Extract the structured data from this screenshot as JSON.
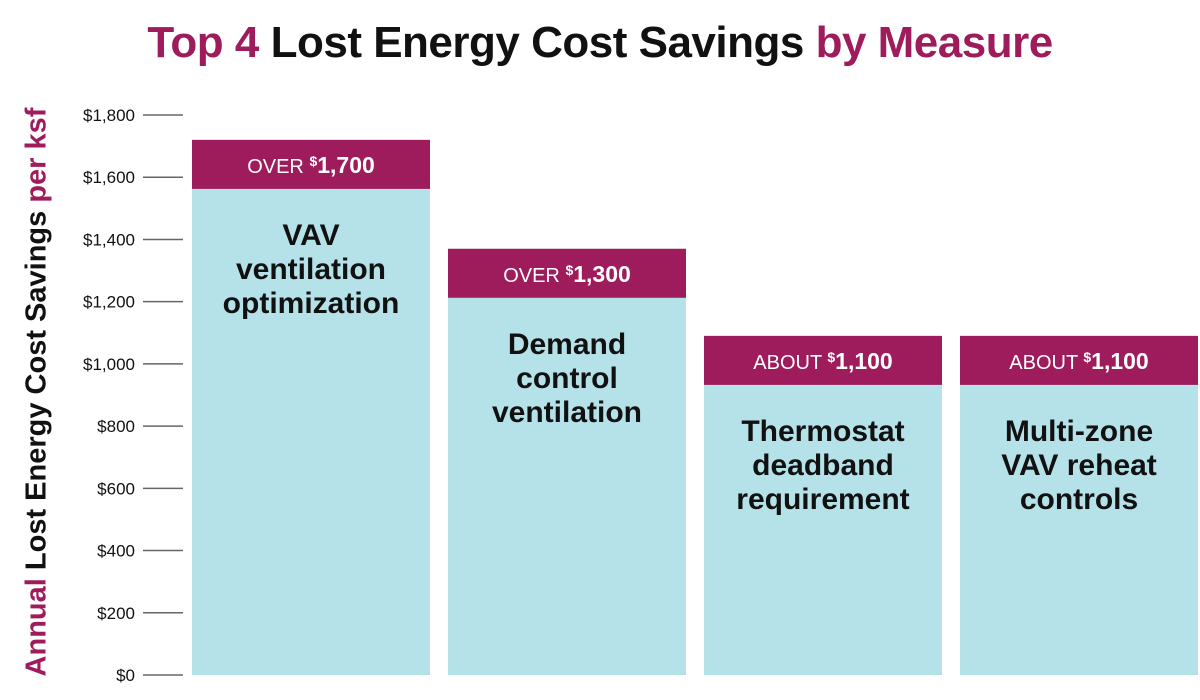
{
  "chart_data": {
    "type": "bar",
    "title_parts": [
      {
        "text": "Top 4 ",
        "highlight": true
      },
      {
        "text": "Lost Energy Cost Savings ",
        "highlight": false
      },
      {
        "text": "by Measure",
        "highlight": true
      }
    ],
    "ylabel_parts": [
      {
        "text": "Annual ",
        "highlight": true
      },
      {
        "text": "Lost Energy Cost Savings ",
        "highlight": false
      },
      {
        "text": "per ksf",
        "highlight": true
      }
    ],
    "ylim": [
      0,
      1800
    ],
    "yticks": [
      0,
      200,
      400,
      600,
      800,
      1000,
      1200,
      1400,
      1600,
      1800
    ],
    "ytick_labels": [
      "$0",
      "$200",
      "$400",
      "$600",
      "$800",
      "$1,000",
      "$1,200",
      "$1,400",
      "$1,600",
      "$1,800"
    ],
    "categories": [
      [
        "VAV",
        "ventilation",
        "optimization"
      ],
      [
        "Demand",
        "control",
        "ventilation"
      ],
      [
        "Thermostat",
        "deadband",
        "requirement"
      ],
      [
        "Multi-zone",
        "VAV reheat",
        "controls"
      ]
    ],
    "values": [
      1720,
      1370,
      1090,
      1090
    ],
    "data_labels": [
      {
        "prefix": "OVER",
        "currency": "$",
        "amount": "1,700"
      },
      {
        "prefix": "OVER",
        "currency": "$",
        "amount": "1,300"
      },
      {
        "prefix": "ABOUT",
        "currency": "$",
        "amount": "1,100"
      },
      {
        "prefix": "ABOUT",
        "currency": "$",
        "amount": "1,100"
      }
    ],
    "grid": false,
    "colors": {
      "accent": "#9e1c5c",
      "bar": "#b5e1e8",
      "text": "#111111",
      "tick_line": "#666666"
    }
  }
}
